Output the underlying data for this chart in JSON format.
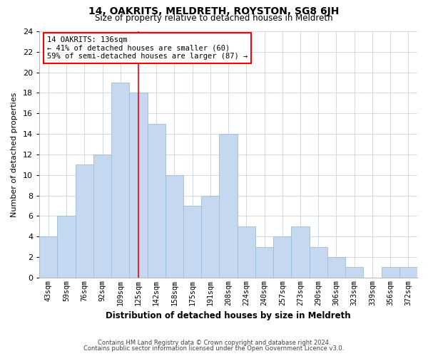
{
  "title": "14, OAKRITS, MELDRETH, ROYSTON, SG8 6JH",
  "subtitle": "Size of property relative to detached houses in Meldreth",
  "xlabel": "Distribution of detached houses by size in Meldreth",
  "ylabel": "Number of detached properties",
  "bar_labels": [
    "43sqm",
    "59sqm",
    "76sqm",
    "92sqm",
    "109sqm",
    "125sqm",
    "142sqm",
    "158sqm",
    "175sqm",
    "191sqm",
    "208sqm",
    "224sqm",
    "240sqm",
    "257sqm",
    "273sqm",
    "290sqm",
    "306sqm",
    "323sqm",
    "339sqm",
    "356sqm",
    "372sqm"
  ],
  "bar_values": [
    4,
    6,
    11,
    12,
    19,
    18,
    15,
    10,
    7,
    8,
    14,
    5,
    3,
    4,
    5,
    3,
    2,
    1,
    0,
    1,
    1
  ],
  "bar_color": "#c5d8f0",
  "bar_edge_color": "#a0bcd8",
  "ylim": [
    0,
    24
  ],
  "yticks": [
    0,
    2,
    4,
    6,
    8,
    10,
    12,
    14,
    16,
    18,
    20,
    22,
    24
  ],
  "annotation_title": "14 OAKRITS: 136sqm",
  "annotation_line1": "← 41% of detached houses are smaller (60)",
  "annotation_line2": "59% of semi-detached houses are larger (87) →",
  "red_line_x": 5.5,
  "footer_line1": "Contains HM Land Registry data © Crown copyright and database right 2024.",
  "footer_line2": "Contains public sector information licensed under the Open Government Licence v3.0.",
  "background_color": "#ffffff",
  "grid_color": "#c8d4e0"
}
